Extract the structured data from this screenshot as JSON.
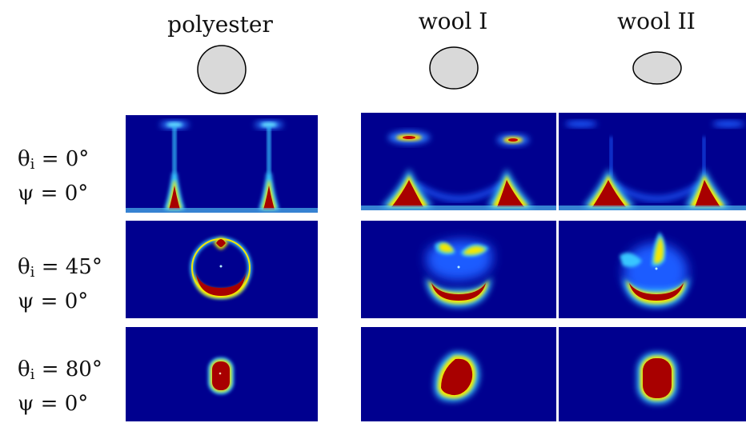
{
  "columns": [
    {
      "id": "polyester",
      "title": "polyester"
    },
    {
      "id": "wool1",
      "title": "wool I"
    },
    {
      "id": "wool2",
      "title": "wool II"
    }
  ],
  "rows": [
    {
      "theta_sym": "θ",
      "theta_sub": "i",
      "theta_val": "= 0°",
      "psi_sym": "ψ",
      "psi_val": "= 0°"
    },
    {
      "theta_sym": "θ",
      "theta_sub": "i",
      "theta_val": "= 45°",
      "psi_sym": "ψ",
      "psi_val": "= 0°"
    },
    {
      "theta_sym": "θ",
      "theta_sub": "i",
      "theta_val": "= 80°",
      "psi_sym": "ψ",
      "psi_val": "= 0°"
    }
  ],
  "colors": {
    "background": "#00008f",
    "cyan": "#39c6ff",
    "yellow": "#f5e800",
    "red": "#a80000",
    "cross_section_fill": "#d9d9d9"
  }
}
